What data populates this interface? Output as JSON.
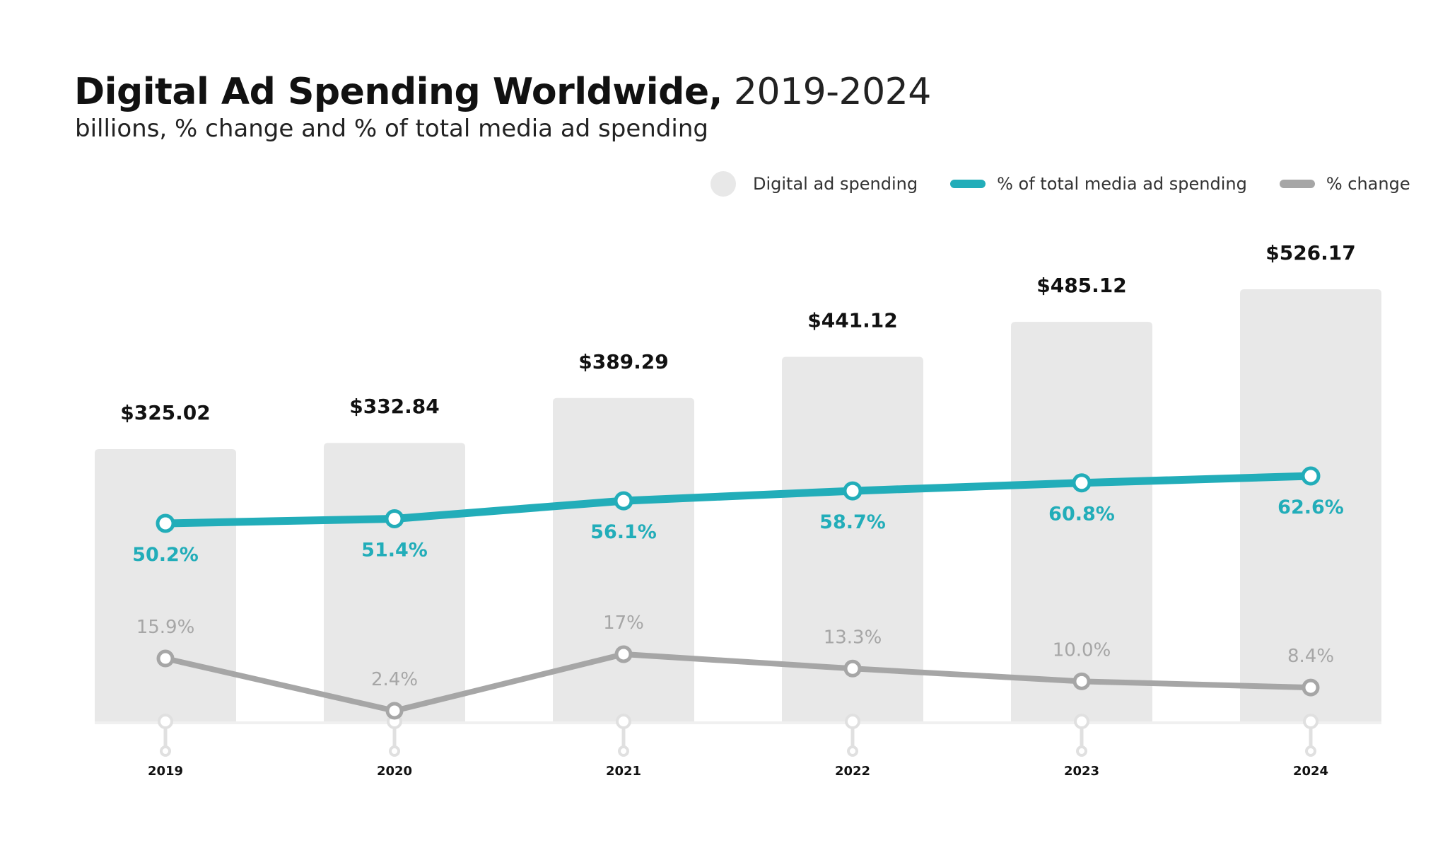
{
  "header": {
    "title_bold": "Digital Ad Spending Worldwide,",
    "title_years": "2019-2024",
    "subtitle": "billions, % change and % of total media ad spending"
  },
  "legend": [
    {
      "label": "Digital ad spending",
      "kind": "bar",
      "color": "#e8e8e8"
    },
    {
      "label": "% of total media ad spending",
      "kind": "line",
      "color": "#22adb9"
    },
    {
      "label": "% change",
      "kind": "line",
      "color": "#a6a6a6"
    }
  ],
  "colors": {
    "bar": "#e8e8e8",
    "teal": "#22adb9",
    "gray": "#a6a6a6",
    "value_label": "#111111",
    "axis_marker": "#e0e0e0"
  },
  "chart_data": {
    "type": "bar",
    "title": "Digital Ad Spending Worldwide, 2019-2024",
    "subtitle": "billions, % change and % of total media ad spending",
    "categories": [
      "2019",
      "2020",
      "2021",
      "2022",
      "2023",
      "2024"
    ],
    "series": [
      {
        "name": "Digital ad spending",
        "type": "bar",
        "unit": "billions USD",
        "values": [
          325.02,
          332.84,
          389.29,
          441.12,
          485.12,
          526.17
        ],
        "labels": [
          "$325.02",
          "$332.84",
          "$389.29",
          "$441.12",
          "$485.12",
          "$526.17"
        ]
      },
      {
        "name": "% of total media ad spending",
        "type": "line",
        "unit": "%",
        "values": [
          50.2,
          51.4,
          56.1,
          58.7,
          60.8,
          62.6
        ],
        "labels": [
          "50.2%",
          "51.4%",
          "56.1%",
          "58.7%",
          "60.8%",
          "62.6%"
        ]
      },
      {
        "name": "% change",
        "type": "line",
        "unit": "%",
        "values": [
          15.9,
          2.4,
          17.0,
          13.3,
          10.0,
          8.4
        ],
        "labels": [
          "15.9%",
          "2.4%",
          "17%",
          "13.3%",
          "10.0%",
          "8.4%"
        ]
      }
    ],
    "xlabel": "",
    "ylabel": "",
    "grid": false,
    "legend_position": "top-right"
  }
}
